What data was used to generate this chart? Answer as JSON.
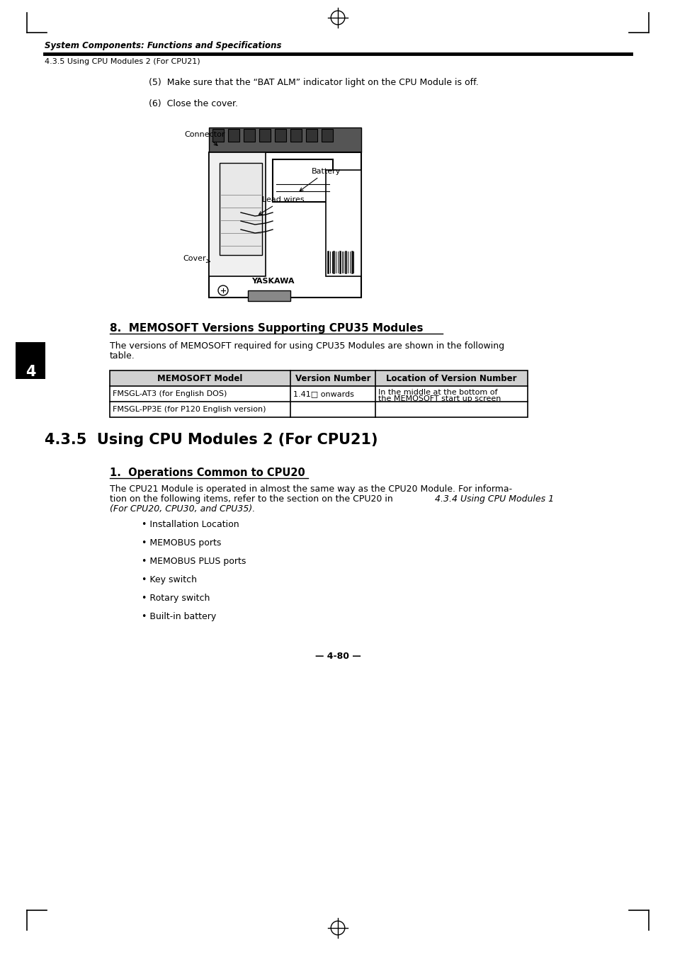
{
  "page_bg": "#ffffff",
  "header_italic": "System Components: Functions and Specifications",
  "header_sub": "4.3.5 Using CPU Modules 2 (For CPU21)",
  "step5_text": "(5)  Make sure that the “BAT ALM” indicator light on the CPU Module is off.",
  "step6_text": "(6)  Close the cover.",
  "connector_label": "Connector",
  "battery_label": "Battery",
  "lead_wires_label": "Lead wires",
  "cover_label": "Cover",
  "section8_title": "8.  MEMOSOFT Versions Supporting CPU35 Modules",
  "section8_para_1": "The versions of MEMOSOFT required for using CPU35 Modules are shown in the following",
  "section8_para_2": "table.",
  "table_headers": [
    "MEMOSOFT Model",
    "Version Number",
    "Location of Version Number"
  ],
  "table_row1_col1": "FMSGL-AT3 (for English DOS)",
  "table_row1_col2": "1.41□ onwards",
  "table_row1_col3a": "In the middle at the bottom of",
  "table_row1_col3b": "the MEMOSOFT start up screen",
  "table_row2_col1": "FMSGL-PP3E (for P120 English version)",
  "section435_title": "4.3.5  Using CPU Modules 2 (For CPU21)",
  "section1_title": "1.  Operations Common to CPU20",
  "section1_para_1": "The CPU21 Module is operated in almost the same way as the CPU20 Module. For informa-",
  "section1_para_2": "tion on the following items, refer to the section on the CPU20 in 4.3.4 Using CPU Modules 1",
  "section1_para_2_italic": "tion on the following items, refer to the section on the CPU20 in ",
  "section1_para_2_ref": "4.3.4 Using CPU Modules 1",
  "section1_para_3": "(For CPU20, CPU30, and CPU35).",
  "bullet_items": [
    "• Installation Location",
    "• MEMOBUS ports",
    "• MEMOBUS PLUS ports",
    "• Key switch",
    "• Rotary switch",
    "• Built-in battery"
  ],
  "page_number": "— 4-80 —",
  "tab_number": "4",
  "tab_bg": "#000000",
  "tab_text_color": "#ffffff"
}
